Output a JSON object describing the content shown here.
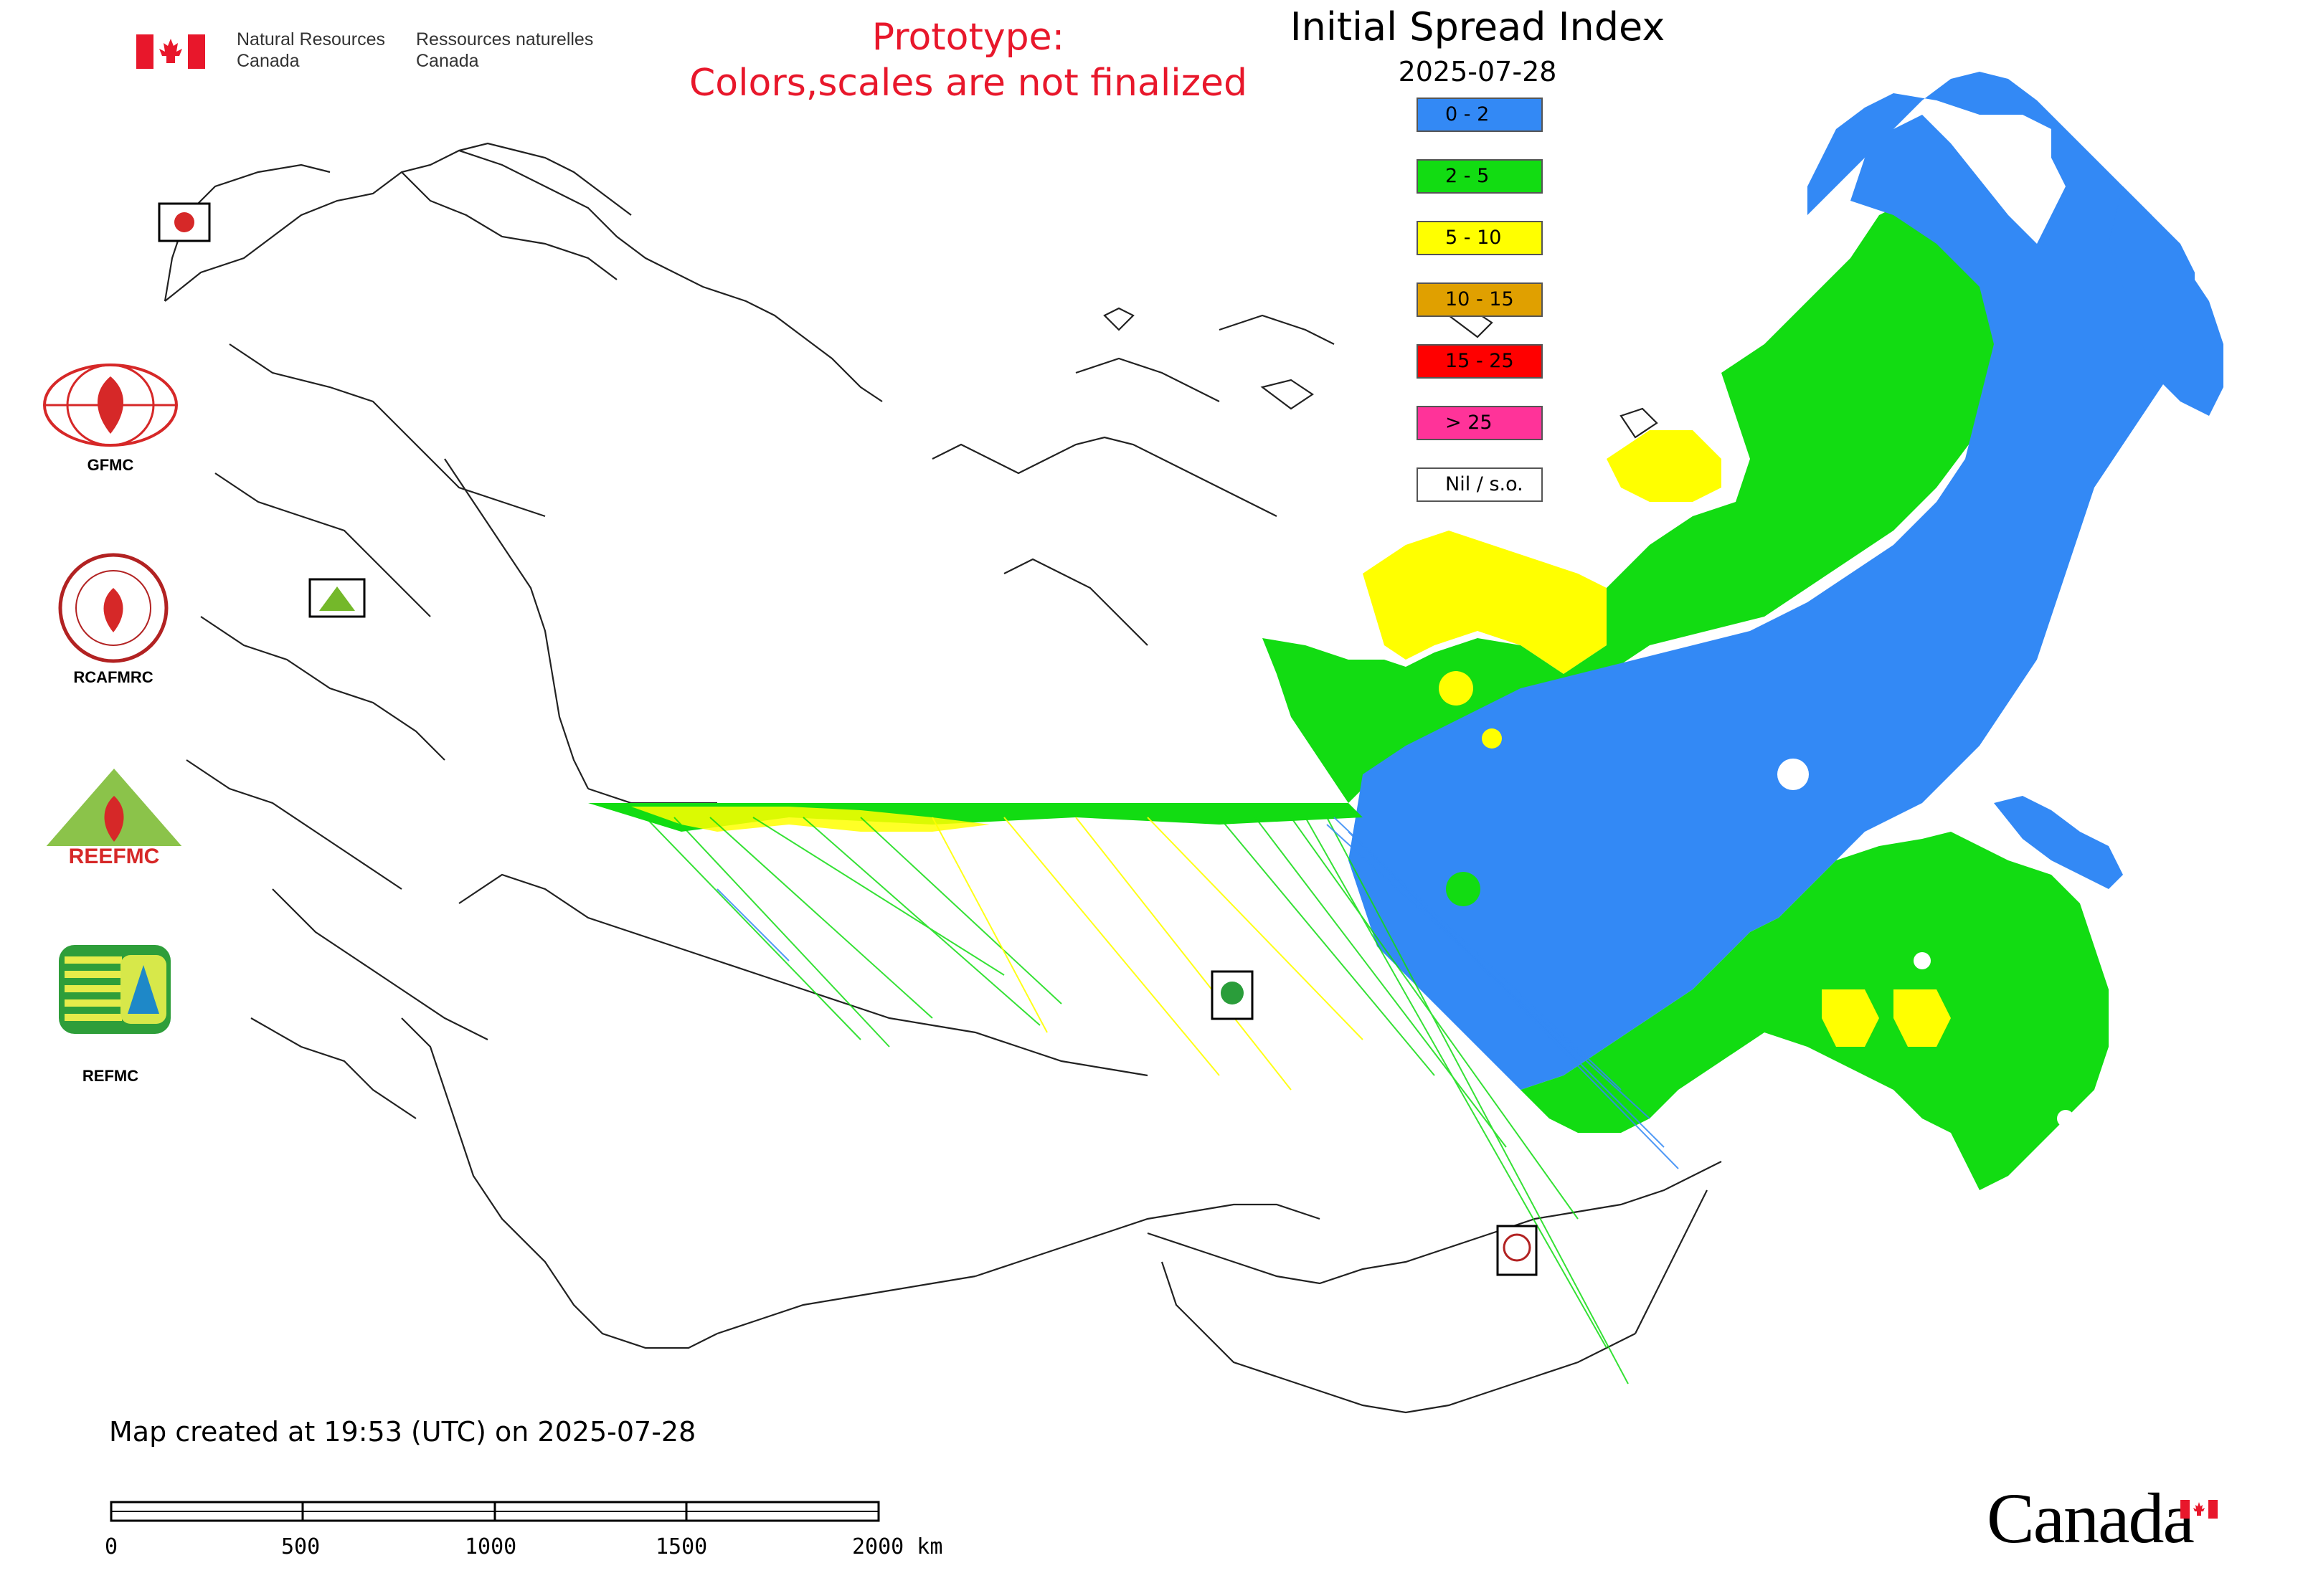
{
  "header": {
    "agency_en": [
      "Natural Resources",
      "Canada"
    ],
    "agency_fr": [
      "Ressources naturelles",
      "Canada"
    ],
    "prototype_line1": "Prototype:",
    "prototype_line2": "Colors,scales are not finalized",
    "title": "Initial Spread Index",
    "date": "2025-07-28"
  },
  "legend": [
    {
      "label": "0 - 2",
      "color": "#3389f5"
    },
    {
      "label": "2 - 5",
      "color": "#12dc12"
    },
    {
      "label": "5 - 10",
      "color": "#ffff00"
    },
    {
      "label": "10 - 15",
      "color": "#e0a000"
    },
    {
      "label": "15 - 25",
      "color": "#ff0000"
    },
    {
      "label": "> 25",
      "color": "#ff3399"
    },
    {
      "label": "Nil / s.o.",
      "color": "#ffffff"
    }
  ],
  "logos": [
    {
      "name": "GFMC",
      "label": "GFMC"
    },
    {
      "name": "RCAFMRC",
      "label": "RCAFMRC"
    },
    {
      "name": "REEFMC",
      "label": "REEFMC"
    },
    {
      "name": "REFMC",
      "label": "REFMC"
    }
  ],
  "footer": {
    "created": "Map created at 19:53 (UTC) on 2025-07-28",
    "scale_ticks": [
      "0",
      "500",
      "1000",
      "1500",
      "2000 km"
    ],
    "canada_wordmark": "Canada"
  }
}
